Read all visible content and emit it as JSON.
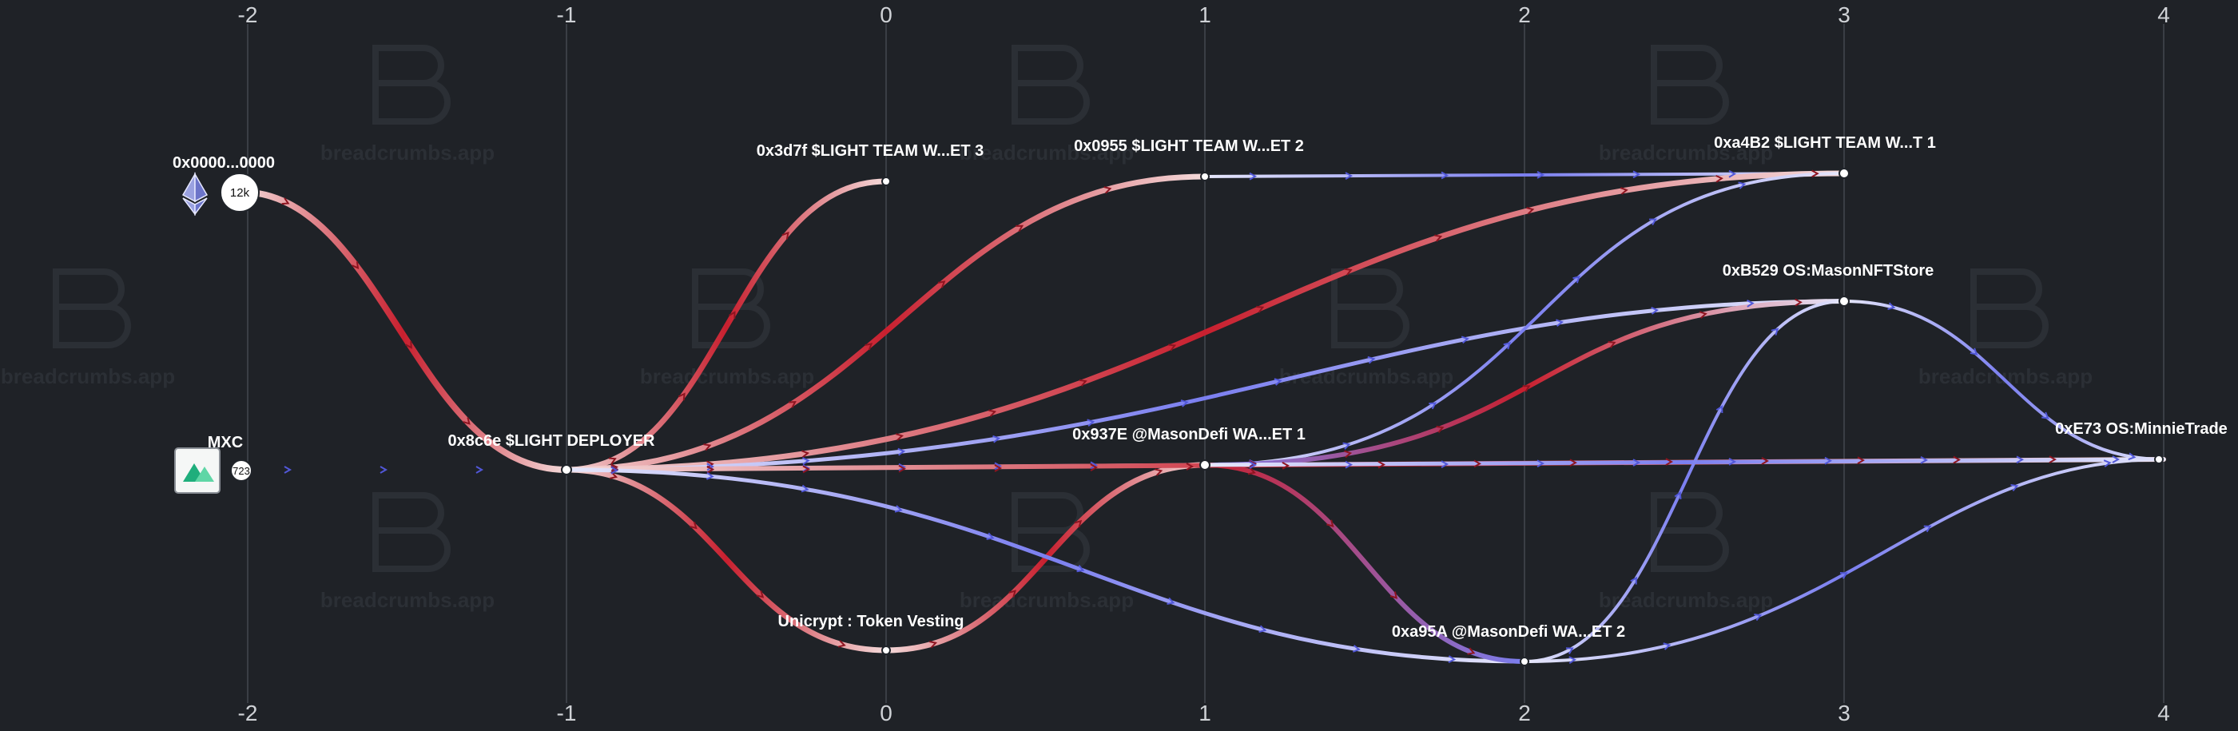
{
  "watermark": {
    "text": "breadcrumbs.app"
  },
  "axis": {
    "columns": [
      "-2",
      "-1",
      "0",
      "1",
      "2",
      "3",
      "4"
    ]
  },
  "nodes": [
    {
      "id": "eth",
      "label": "0x0000...0000",
      "badge": "12k",
      "icon": "ethereum-icon"
    },
    {
      "id": "mxc",
      "label": "MXC",
      "badge": "723",
      "icon": "mxc-logo-icon"
    },
    {
      "id": "deployer",
      "label": "0x8c6e $LIGHT DEPLOYER"
    },
    {
      "id": "team3",
      "label": "0x3d7f $LIGHT TEAM W...ET 3"
    },
    {
      "id": "unicrypt",
      "label": "Unicrypt : Token Vesting"
    },
    {
      "id": "team2",
      "label": "0x0955 $LIGHT TEAM W...ET 2"
    },
    {
      "id": "defi1",
      "label": "0x937E @MasonDefi WA...ET 1"
    },
    {
      "id": "defi2",
      "label": "0xa95A @MasonDefi WA...ET 2"
    },
    {
      "id": "team1",
      "label": "0xa4B2 $LIGHT TEAM W...T 1"
    },
    {
      "id": "nftstore",
      "label": "0xB529 OS:MasonNFTStore"
    },
    {
      "id": "minnie",
      "label": "0xE73 OS:MinnieTrade"
    }
  ],
  "colors": {
    "background": "#1f2227",
    "outflow_red": "#c8202f",
    "inflow_blue": "#7b7ff0",
    "light": "#f2f2f5"
  }
}
